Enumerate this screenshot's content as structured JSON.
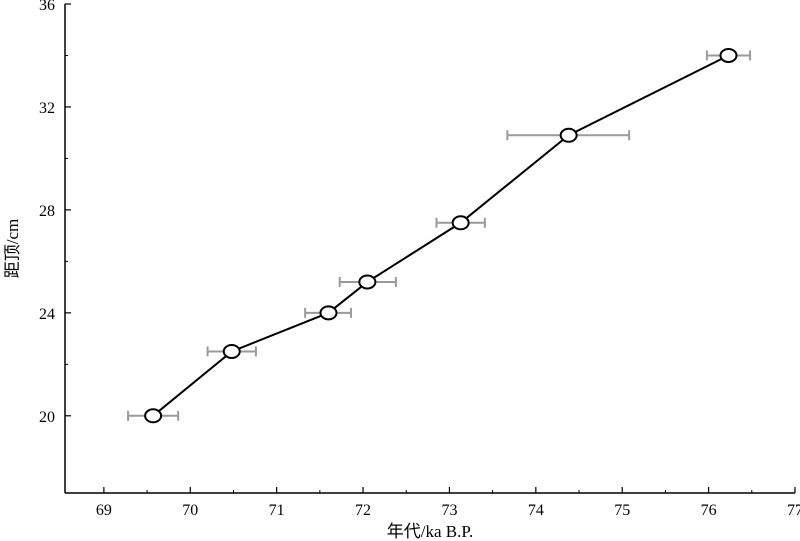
{
  "chart_data": {
    "type": "scatter",
    "xlabel": "年代/ka B.P.",
    "ylabel": "距顶/cm",
    "xlim": [
      68.55,
      77
    ],
    "ylim": [
      17,
      36
    ],
    "xticks": [
      69,
      70,
      71,
      72,
      73,
      74,
      75,
      76,
      77
    ],
    "yticks": [
      20,
      24,
      28,
      32,
      36
    ],
    "grid": false,
    "legend": "none",
    "series": [
      {
        "points": [
          {
            "x": 69.57,
            "y": 20.0,
            "xerr_low": 69.28,
            "xerr_high": 69.86
          },
          {
            "x": 70.48,
            "y": 22.5,
            "xerr_low": 70.2,
            "xerr_high": 70.76
          },
          {
            "x": 71.6,
            "y": 24.0,
            "xerr_low": 71.33,
            "xerr_high": 71.86
          },
          {
            "x": 72.05,
            "y": 25.2,
            "xerr_low": 71.73,
            "xerr_high": 72.38
          },
          {
            "x": 73.13,
            "y": 27.5,
            "xerr_low": 72.85,
            "xerr_high": 73.41
          },
          {
            "x": 74.38,
            "y": 30.9,
            "xerr_low": 73.67,
            "xerr_high": 75.08
          },
          {
            "x": 76.23,
            "y": 34.0,
            "xerr_low": 75.98,
            "xerr_high": 76.48
          }
        ]
      }
    ],
    "colors": {
      "line": "#000000",
      "errorbar": "#9a9a9a",
      "marker_fill": "#ffffff"
    }
  }
}
